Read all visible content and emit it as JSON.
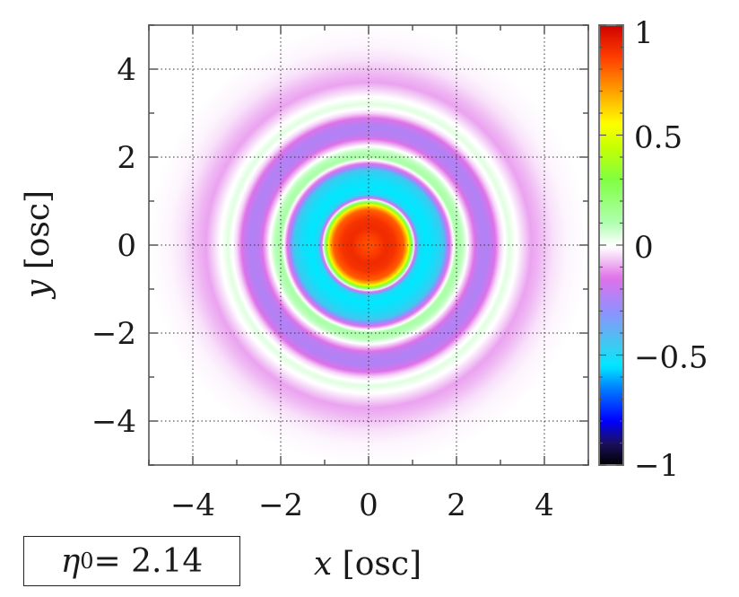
{
  "chart_data": {
    "type": "heatmap",
    "xlabel_var": "x",
    "xlabel_unit": "[osc]",
    "ylabel_var": "y",
    "ylabel_unit": "[osc]",
    "xlim": [
      -5,
      5
    ],
    "ylim": [
      -5,
      5
    ],
    "x_ticks": [
      -4,
      -2,
      0,
      2,
      4
    ],
    "y_ticks": [
      -4,
      -2,
      0,
      2,
      4
    ],
    "x_tick_labels": [
      "−4",
      "−2",
      "0",
      "2",
      "4"
    ],
    "y_tick_labels": [
      "−4",
      "−2",
      "0",
      "2",
      "4"
    ],
    "grid": true,
    "colorbar": {
      "range": [
        -1,
        1
      ],
      "ticks": [
        1,
        0.5,
        0,
        -0.5,
        -1
      ],
      "tick_labels": [
        "1",
        "0.5",
        "0",
        "−0.5",
        "−1"
      ],
      "colormap": [
        [
          -1.0,
          "#000000"
        ],
        [
          -0.9,
          "#1a1060"
        ],
        [
          -0.8,
          "#0000ff"
        ],
        [
          -0.65,
          "#0080ff"
        ],
        [
          -0.55,
          "#00e8ff"
        ],
        [
          -0.45,
          "#40c8f0"
        ],
        [
          -0.3,
          "#9090ff"
        ],
        [
          -0.15,
          "#e070e8"
        ],
        [
          -0.01,
          "#ffffff"
        ],
        [
          0.0,
          "#ffffff"
        ],
        [
          0.1,
          "#b0ffb0"
        ],
        [
          0.3,
          "#80ff40"
        ],
        [
          0.45,
          "#c8ff00"
        ],
        [
          0.55,
          "#ffff00"
        ],
        [
          0.7,
          "#ffa000"
        ],
        [
          0.85,
          "#ff4000"
        ],
        [
          1.0,
          "#d00000"
        ]
      ]
    },
    "radial_profile": {
      "r": [
        0,
        0.2,
        0.4,
        0.6,
        0.8,
        0.9,
        1.0,
        1.05,
        1.15,
        1.3,
        1.5,
        1.7,
        1.85,
        2.0,
        2.15,
        2.3,
        2.5,
        2.7,
        2.85,
        3.0,
        3.2,
        3.45,
        3.7,
        3.9,
        4.2,
        4.5,
        5.0,
        7.1
      ],
      "value": [
        0.82,
        0.85,
        0.9,
        0.88,
        0.8,
        0.6,
        0.15,
        -0.1,
        -0.5,
        -0.55,
        -0.52,
        -0.45,
        -0.15,
        0.12,
        0.08,
        -0.05,
        -0.22,
        -0.24,
        -0.18,
        -0.05,
        0.04,
        -0.03,
        -0.1,
        -0.08,
        -0.04,
        -0.02,
        -0.01,
        0
      ]
    }
  },
  "parameter_box": {
    "symbol": "η",
    "subscript": "0",
    "text": " = 2.14"
  }
}
